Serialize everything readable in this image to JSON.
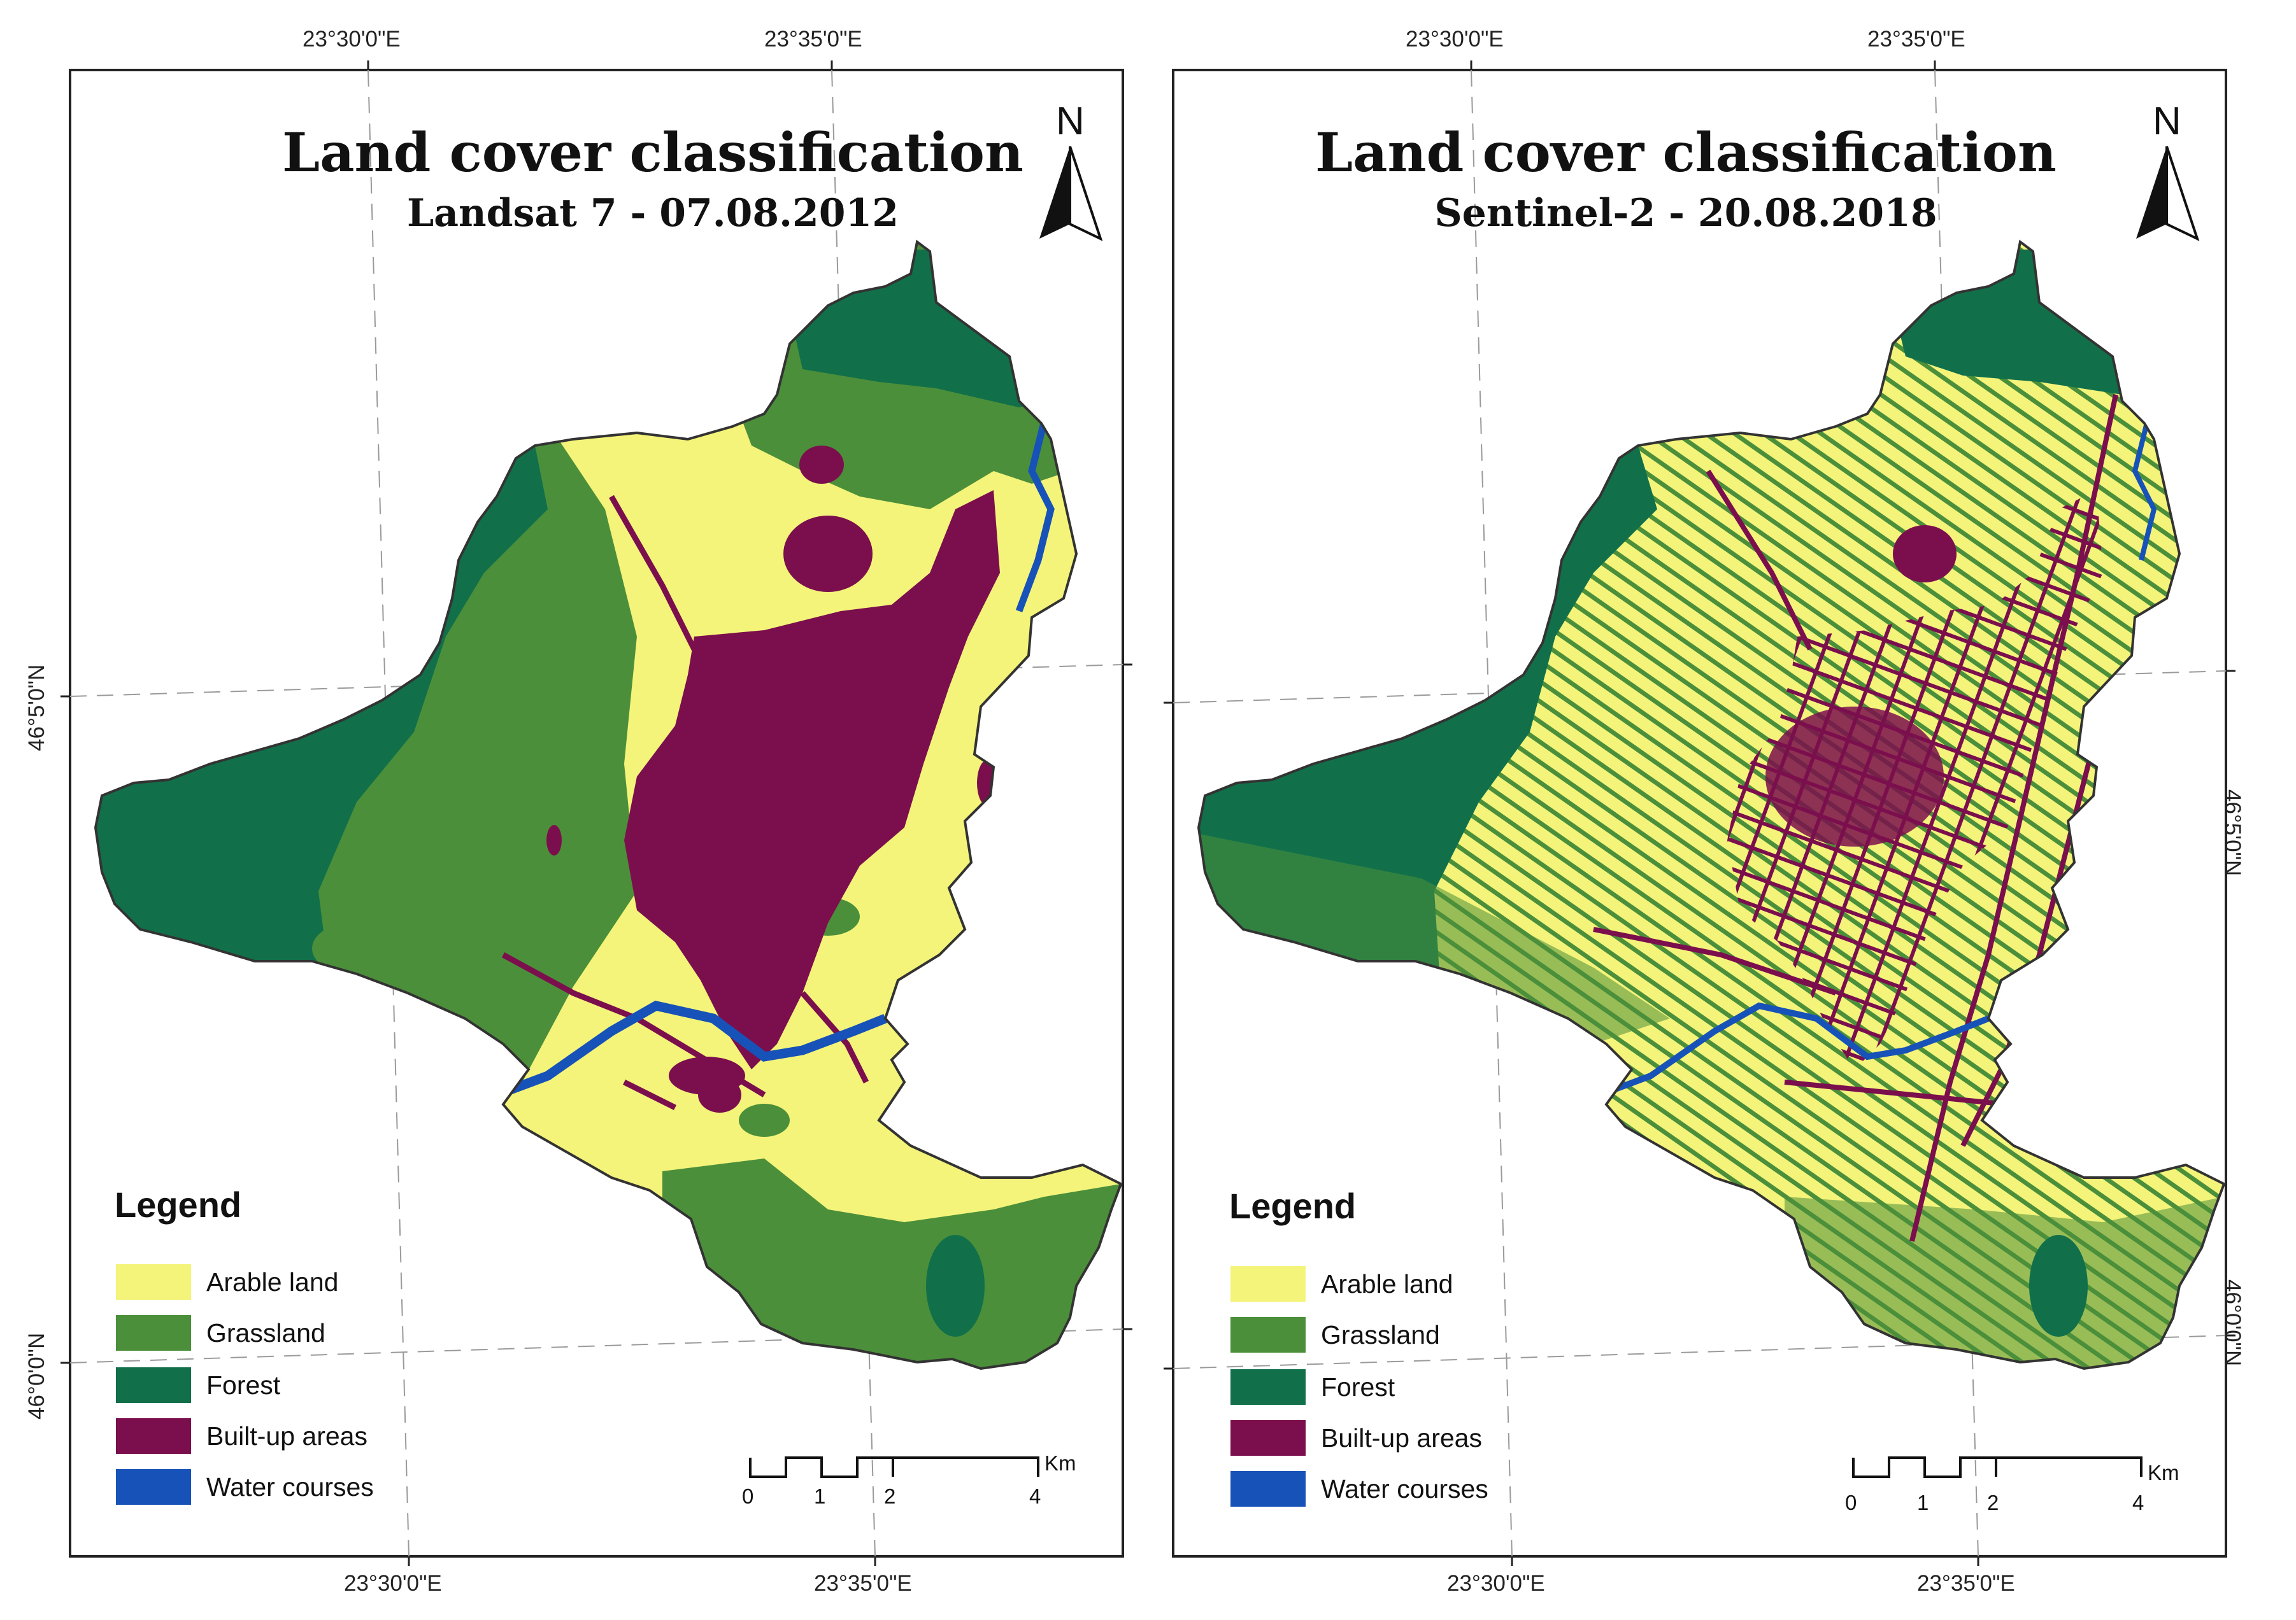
{
  "colors": {
    "arable": "#f4f47a",
    "grassland": "#4c8f3a",
    "forest": "#11704a",
    "builtup": "#7b0f4d",
    "water": "#1752b8"
  },
  "legend": {
    "title": "Legend",
    "items": [
      {
        "label": "Arable land",
        "color": "#f4f47a"
      },
      {
        "label": "Grassland",
        "color": "#4c8f3a"
      },
      {
        "label": "Forest",
        "color": "#11704a"
      },
      {
        "label": "Built-up areas",
        "color": "#7b0f4d"
      },
      {
        "label": "Water courses",
        "color": "#1752b8"
      }
    ]
  },
  "scale_bar": {
    "unit": "Km",
    "labels": [
      "0",
      "1",
      "2",
      "4"
    ]
  },
  "north_arrow": {
    "letter": "N"
  },
  "maps": [
    {
      "title": "Land cover classification",
      "subtitle": "Landsat 7 - 07.08.2012",
      "top_lon": [
        "23°30'0\"E",
        "23°35'0\"E"
      ],
      "bottom_lon": [
        "23°30'0\"E",
        "23°35'0\"E"
      ],
      "left_lat": [
        "46°5'0\"N",
        "46°0'0\"N"
      ]
    },
    {
      "title": "Land cover classification",
      "subtitle": "Sentinel-2 - 20.08.2018",
      "top_lon": [
        "23°30'0\"E",
        "23°35'0\"E"
      ],
      "bottom_lon": [
        "23°30'0\"E",
        "23°35'0\"E"
      ],
      "right_lat": [
        "46°5'0\"N",
        "46°0'0\"N"
      ]
    }
  ]
}
